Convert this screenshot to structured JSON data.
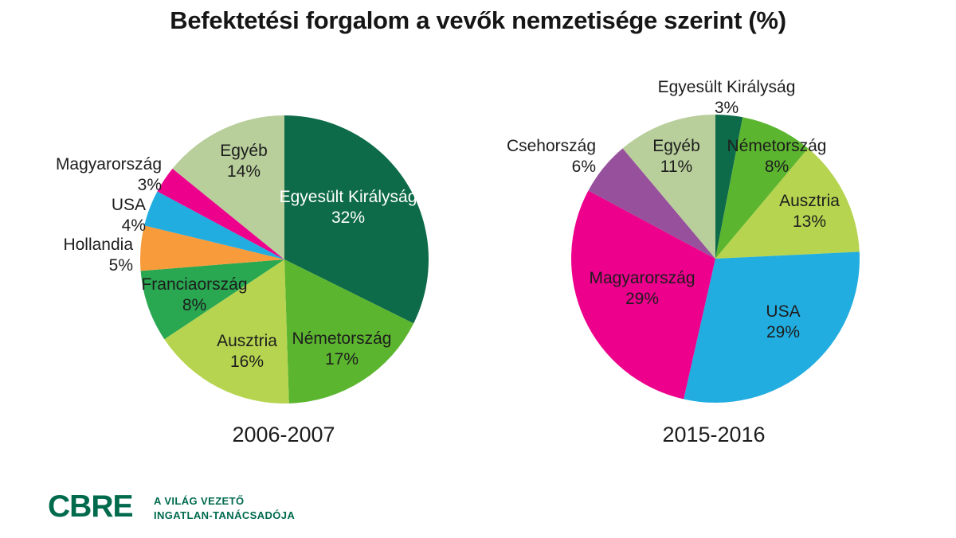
{
  "header": {
    "title": "Befektetési forgalom a vevők nemzetisége szerint (%)"
  },
  "chart_data": [
    {
      "type": "pie",
      "title": "2006-2007",
      "legend_position": "labels-on-chart",
      "slices": [
        {
          "label": "Egyesült Királyság",
          "value": 32,
          "color": "#0E6B4A",
          "label_color": "#FFFFFF"
        },
        {
          "label": "Németország",
          "value": 17,
          "color": "#5CB52F",
          "label_color": "#1D1D1D"
        },
        {
          "label": "Ausztria",
          "value": 16,
          "color": "#B6D44F",
          "label_color": "#1D1D1D"
        },
        {
          "label": "Franciaország",
          "value": 8,
          "color": "#29A751",
          "label_color": "#1D1D1D"
        },
        {
          "label": "Hollandia",
          "value": 5,
          "color": "#F89B3B",
          "label_color": "#1D1D1D"
        },
        {
          "label": "USA",
          "value": 4,
          "color": "#22ADE0",
          "label_color": "#1D1D1D"
        },
        {
          "label": "Magyarország",
          "value": 3,
          "color": "#EC008C",
          "label_color": "#1D1D1D"
        },
        {
          "label": "Egyéb",
          "value": 14,
          "color": "#B8CE9B",
          "label_color": "#1D1D1D"
        }
      ]
    },
    {
      "type": "pie",
      "title": "2015-2016",
      "legend_position": "labels-on-chart",
      "slices": [
        {
          "label": "Egyesült Királyság",
          "value": 3,
          "color": "#0E6B4A",
          "label_color": "#1D1D1D"
        },
        {
          "label": "Németország",
          "value": 8,
          "color": "#5CB52F",
          "label_color": "#1D1D1D"
        },
        {
          "label": "Ausztria",
          "value": 13,
          "color": "#B6D44F",
          "label_color": "#1D1D1D"
        },
        {
          "label": "USA",
          "value": 29,
          "color": "#22ADE0",
          "label_color": "#1D1D1D"
        },
        {
          "label": "Magyarország",
          "value": 29,
          "color": "#EC008C",
          "label_color": "#1D1D1D"
        },
        {
          "label": "Csehország",
          "value": 6,
          "color": "#97519C",
          "label_color": "#1D1D1D"
        },
        {
          "label": "Egyéb",
          "value": 11,
          "color": "#B8CE9B",
          "label_color": "#1D1D1D"
        }
      ]
    }
  ],
  "footer": {
    "logo_text": "CBRE",
    "tagline_line1": "A VILÁG VEZETŐ",
    "tagline_line2": "INGATLAN-TANÁCSADÓJA",
    "brand_color": "#006A4D"
  }
}
